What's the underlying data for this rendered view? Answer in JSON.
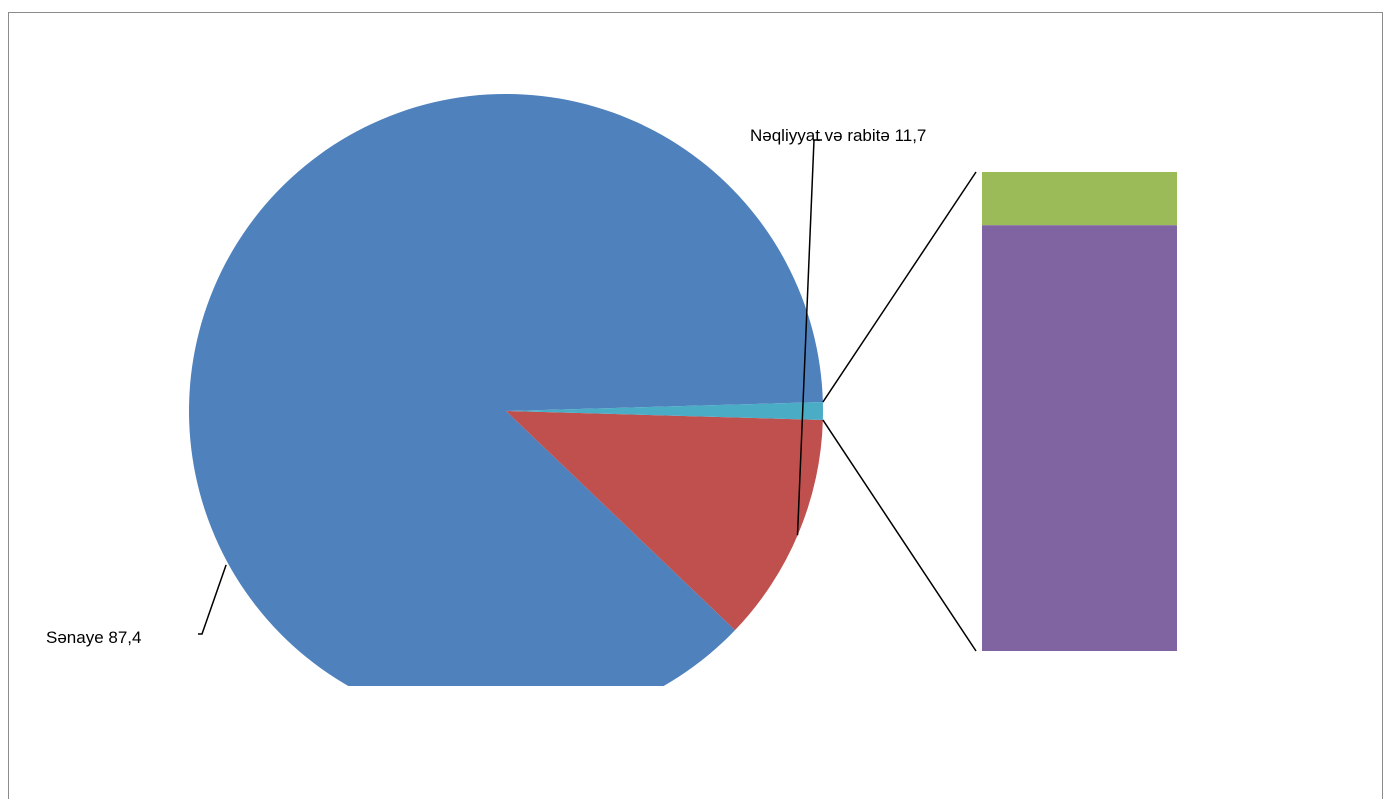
{
  "chart_data": {
    "type": "bar-of-pie",
    "pie": {
      "slices": [
        {
          "name": "Sənaye",
          "value": 87.4,
          "color": "#4F81BD",
          "label": "Sənaye 87,4"
        },
        {
          "name": "Nəqliyyat və rabitə",
          "value": 11.7,
          "color": "#C0504D",
          "label": "Nəqliyyat və rabitə 11,7"
        },
        {
          "name": "",
          "value": 0.9,
          "color": "#4BACC6",
          "label": ""
        }
      ]
    },
    "stacked_bar": {
      "segments": [
        {
          "name": "",
          "value": 0.1,
          "color": "#9BBB59"
        },
        {
          "name": "",
          "value": 0.8,
          "color": "#8064A2"
        }
      ]
    }
  }
}
